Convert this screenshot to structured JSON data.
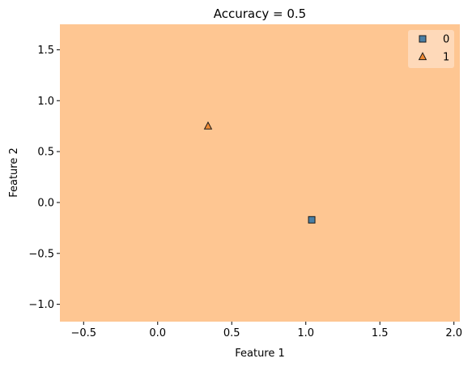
{
  "chart_data": {
    "type": "scatter",
    "title": "Accuracy = 0.5",
    "xlabel": "Feature 1",
    "ylabel": "Feature 2",
    "xlim": [
      -0.66,
      2.04
    ],
    "ylim": [
      -1.17,
      1.75
    ],
    "xticks": [
      -0.5,
      0.0,
      0.5,
      1.0,
      1.5,
      2.0
    ],
    "xtick_labels": [
      "−0.5",
      "0.0",
      "0.5",
      "1.0",
      "1.5",
      "2.0"
    ],
    "yticks": [
      -1.0,
      -0.5,
      0.0,
      0.5,
      1.0,
      1.5
    ],
    "ytick_labels": [
      "−1.0",
      "−0.5",
      "0.0",
      "0.5",
      "1.0",
      "1.5"
    ],
    "grid": false,
    "legend_position": "top-right",
    "decision_region": {
      "predicted_class": "1",
      "color": "#fec692"
    },
    "series": [
      {
        "name": "0",
        "marker": "square",
        "color": "#4a7fa5",
        "edge": "#1a1a1a",
        "points": [
          {
            "x": 1.04,
            "y": -0.17
          }
        ]
      },
      {
        "name": "1",
        "marker": "triangle",
        "color": "#f08a33",
        "edge": "#1a1a1a",
        "points": [
          {
            "x": 0.34,
            "y": 0.75
          }
        ]
      }
    ]
  }
}
